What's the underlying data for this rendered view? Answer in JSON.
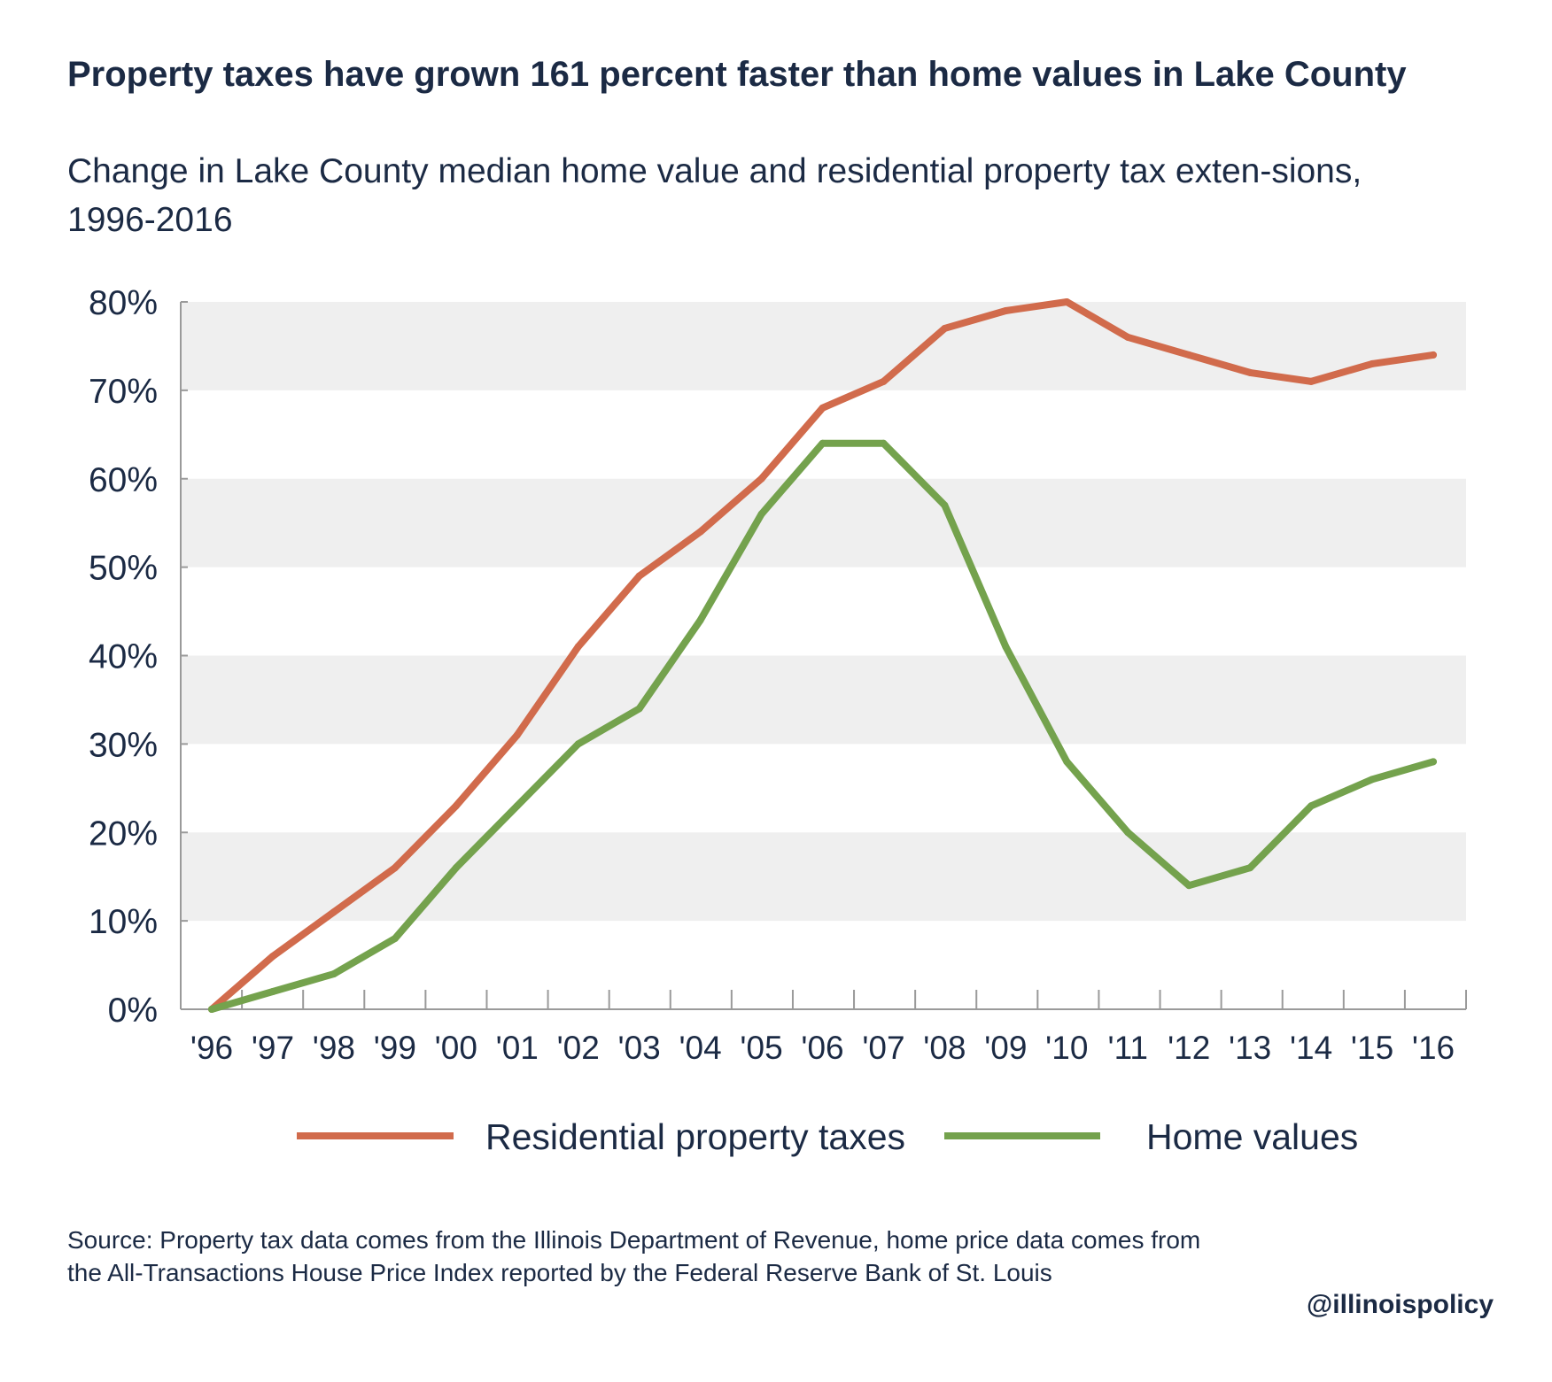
{
  "title": "Property taxes have grown 161 percent faster than home values in Lake County",
  "subtitle": "Change in Lake County median home value and residential property tax exten-sions, 1996-2016",
  "source": "Source: Property tax data comes from the Illinois Department of Revenue, home price data comes from the All-Transactions House Price Index reported by the Federal Reserve Bank of St. Louis",
  "handle": "@illinoispolicy",
  "chart_data": {
    "type": "line",
    "title": "Property taxes have grown 161 percent faster than home values in Lake County",
    "subtitle": "Change in Lake County median home value and residential property tax exten-sions, 1996-2016",
    "xlabel": "",
    "ylabel": "",
    "ylim": [
      0,
      80
    ],
    "y_ticks": [
      "0%",
      "10%",
      "20%",
      "30%",
      "40%",
      "50%",
      "60%",
      "70%",
      "80%"
    ],
    "categories": [
      "'96",
      "'97",
      "'98",
      "'99",
      "'00",
      "'01",
      "'02",
      "'03",
      "'04",
      "'05",
      "'06",
      "'07",
      "'08",
      "'09",
      "'10",
      "'11",
      "'12",
      "'13",
      "'14",
      "'15",
      "'16"
    ],
    "grid": "alternating horizontal bands",
    "legend_position": "bottom",
    "series": [
      {
        "name": "Residential property taxes",
        "color": "#d16b4c",
        "values": [
          0,
          6,
          11,
          16,
          23,
          31,
          41,
          49,
          54,
          60,
          68,
          71,
          77,
          79,
          80,
          76,
          74,
          72,
          71,
          73,
          74
        ]
      },
      {
        "name": "Home values",
        "color": "#74a24d",
        "values": [
          0,
          2,
          4,
          8,
          16,
          23,
          30,
          34,
          44,
          56,
          64,
          64,
          57,
          41,
          28,
          20,
          14,
          16,
          23,
          26,
          28
        ]
      }
    ],
    "band_color": "#efefef",
    "axis_color": "#9a9a9a"
  }
}
